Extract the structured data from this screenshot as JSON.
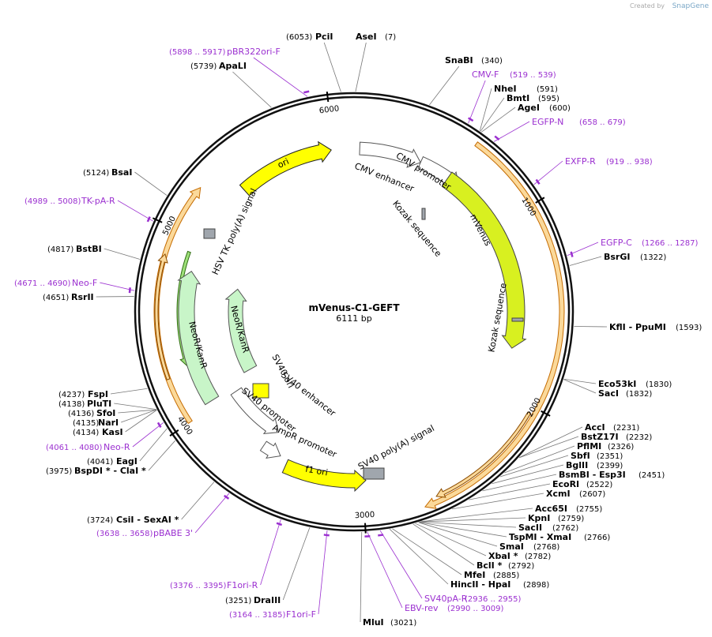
{
  "header": {
    "credit": "Created by",
    "brand": "SnapGene"
  },
  "map": {
    "name": "mVenus-C1-GEFT",
    "length": "6111 bp",
    "ruler": [
      "1000",
      "2000",
      "3000",
      "4000",
      "5000",
      "6000"
    ],
    "features": [
      "ori",
      "CMV enhancer",
      "CMV promoter",
      "Kozak sequence",
      "mVenus",
      "Kozak sequence",
      "HSV TK poly(A) signal",
      "NeoR/KanR",
      "NeoR/KanR",
      "SV40 ori",
      "SV40 enhancer",
      "SV40 promoter",
      "AmpR promoter",
      "f1 ori",
      "SV40 poly(A) signal"
    ],
    "sites": [
      {
        "name": "PciI",
        "position": "(6053)"
      },
      {
        "name": "AseI",
        "position": "(7)"
      },
      {
        "name": "ApaLI",
        "position": "(5739)"
      },
      {
        "name": "SnaBI",
        "position": "(340)"
      },
      {
        "name": "NheI",
        "position": "(591)"
      },
      {
        "name": "BmtI",
        "position": "(595)"
      },
      {
        "name": "AgeI",
        "position": "(600)"
      },
      {
        "name": "BsrGI",
        "position": "(1322)"
      },
      {
        "name": "KflI - PpuMI",
        "position": "(1593)"
      },
      {
        "name": "Eco53kI",
        "position": "(1830)"
      },
      {
        "name": "SacI",
        "position": "(1832)"
      },
      {
        "name": "AccI",
        "position": "(2231)"
      },
      {
        "name": "BstZ17I",
        "position": "(2232)"
      },
      {
        "name": "PflMI",
        "position": "(2326)"
      },
      {
        "name": "SbfI",
        "position": "(2351)"
      },
      {
        "name": "BglII",
        "position": "(2399)"
      },
      {
        "name": "BsmBI - Esp3I",
        "position": "(2451)"
      },
      {
        "name": "EcoRI",
        "position": "(2522)"
      },
      {
        "name": "XcmI",
        "position": "(2607)"
      },
      {
        "name": "Acc65I",
        "position": "(2755)"
      },
      {
        "name": "KpnI",
        "position": "(2759)"
      },
      {
        "name": "SacII",
        "position": "(2762)"
      },
      {
        "name": "TspMI - XmaI",
        "position": "(2766)"
      },
      {
        "name": "SmaI",
        "position": "(2768)"
      },
      {
        "name": "XbaI *",
        "position": "(2782)"
      },
      {
        "name": "BclI *",
        "position": "(2792)"
      },
      {
        "name": "MfeI",
        "position": "(2885)"
      },
      {
        "name": "HincII - HpaI",
        "position": "(2898)"
      },
      {
        "name": "MluI",
        "position": "(3021)"
      },
      {
        "name": "DraIII",
        "position": "(3251)"
      },
      {
        "name": "CsiI - SexAI *",
        "position": "(3724)"
      },
      {
        "name": "BspDI * - ClaI *",
        "position": "(3975)"
      },
      {
        "name": "EagI",
        "position": "(4041)"
      },
      {
        "name": "KasI",
        "position": "(4134)"
      },
      {
        "name": "NarI",
        "position": "(4135)"
      },
      {
        "name": "SfoI",
        "position": "(4136)"
      },
      {
        "name": "PluTI",
        "position": "(4138)"
      },
      {
        "name": "FspI",
        "position": "(4237)"
      },
      {
        "name": "RsrII",
        "position": "(4651)"
      },
      {
        "name": "BstBI",
        "position": "(4817)"
      },
      {
        "name": "BsaI",
        "position": "(5124)"
      }
    ],
    "primers": [
      {
        "name": "pBR322ori-F",
        "range": "(5898 .. 5917)"
      },
      {
        "name": "CMV-F",
        "range": "(519 .. 539)"
      },
      {
        "name": "EGFP-N",
        "range": "(658 .. 679)"
      },
      {
        "name": "EXFP-R",
        "range": "(919 .. 938)"
      },
      {
        "name": "EGFP-C",
        "range": "(1266 .. 1287)"
      },
      {
        "name": "SV40pA-R",
        "range": "(2936 .. 2955)"
      },
      {
        "name": "EBV-rev",
        "range": "(2990 .. 3009)"
      },
      {
        "name": "F1ori-F",
        "range": "(3164 .. 3185)"
      },
      {
        "name": "F1ori-R",
        "range": "(3376 .. 3395)"
      },
      {
        "name": "pBABE 3'",
        "range": "(3638 .. 3658)"
      },
      {
        "name": "Neo-R",
        "range": "(4061 .. 4080)"
      },
      {
        "name": "Neo-F",
        "range": "(4671 .. 4690)"
      },
      {
        "name": "TK-pA-R",
        "range": "(4989 .. 5008)"
      }
    ]
  }
}
